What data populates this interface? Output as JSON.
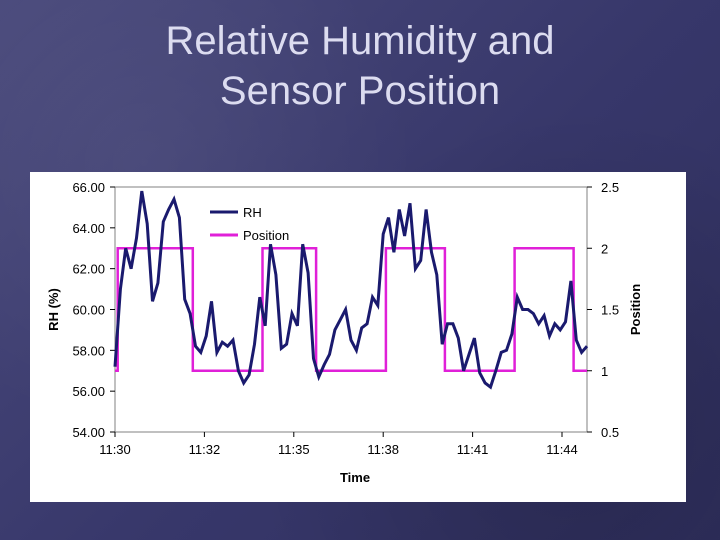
{
  "slide": {
    "title_line1": "Relative Humidity and",
    "title_line2": "Sensor Position"
  },
  "colors": {
    "rh": "#1a1a6e",
    "position": "#e020d8",
    "plot_border": "#808080"
  },
  "chart_data": {
    "type": "line",
    "title": "",
    "xlabel": "Time",
    "ylabel": "RH (%)",
    "y2label": "Position",
    "x_tick_labels": [
      "11:30",
      "11:32",
      "11:35",
      "11:38",
      "11:41",
      "11:44"
    ],
    "x_range_samples": [
      0,
      100
    ],
    "y_ticks": [
      "54.00",
      "56.00",
      "58.00",
      "60.00",
      "62.00",
      "64.00",
      "66.00"
    ],
    "ylim": [
      54,
      66
    ],
    "y2_ticks": [
      "0.5",
      "1",
      "1.5",
      "2",
      "2.5"
    ],
    "y2lim": [
      0.5,
      2.5
    ],
    "grid": false,
    "legend_position": "top-left",
    "series": [
      {
        "name": "RH",
        "axis": "left",
        "values": [
          57.2,
          61.0,
          63.0,
          62.0,
          63.5,
          65.8,
          64.2,
          60.4,
          61.3,
          64.3,
          64.9,
          65.4,
          64.5,
          60.5,
          59.8,
          58.2,
          57.9,
          58.7,
          60.4,
          57.9,
          58.4,
          58.2,
          58.5,
          57.0,
          56.4,
          56.8,
          58.3,
          60.6,
          59.2,
          63.2,
          61.7,
          58.1,
          58.3,
          59.8,
          59.2,
          63.2,
          61.8,
          57.6,
          56.7,
          57.3,
          57.8,
          59.0,
          59.5,
          60.0,
          58.5,
          58.0,
          59.1,
          59.3,
          60.6,
          60.2,
          63.7,
          64.5,
          62.8,
          64.9,
          63.6,
          65.2,
          62.0,
          62.4,
          64.9,
          62.8,
          61.7,
          58.3,
          59.3,
          59.3,
          58.6,
          57.0,
          57.8,
          58.6,
          56.9,
          56.4,
          56.2,
          57.0,
          57.9,
          58.0,
          58.8,
          60.6,
          60.0,
          60.0,
          59.8,
          59.3,
          59.7,
          58.7,
          59.3,
          59.0,
          59.4,
          61.4,
          58.5,
          57.9,
          58.2
        ]
      },
      {
        "name": "Position",
        "axis": "right",
        "values": [
          1,
          2,
          2,
          2,
          2,
          2,
          2,
          2,
          2,
          2,
          2,
          2,
          2,
          2,
          2,
          1,
          1,
          1,
          1,
          1,
          1,
          1,
          1,
          1,
          1,
          1,
          1,
          1,
          2,
          2,
          2,
          2,
          2,
          2,
          2,
          2,
          2,
          2,
          1,
          1,
          1,
          1,
          1,
          1,
          1,
          1,
          1,
          1,
          1,
          1,
          1,
          2,
          2,
          2,
          2,
          2,
          2,
          2,
          2,
          2,
          2,
          2,
          1,
          1,
          1,
          1,
          1,
          1,
          1,
          1,
          1,
          1,
          1,
          1,
          1,
          2,
          2,
          2,
          2,
          2,
          2,
          2,
          2,
          2,
          2,
          2,
          1,
          1,
          1
        ]
      }
    ]
  }
}
